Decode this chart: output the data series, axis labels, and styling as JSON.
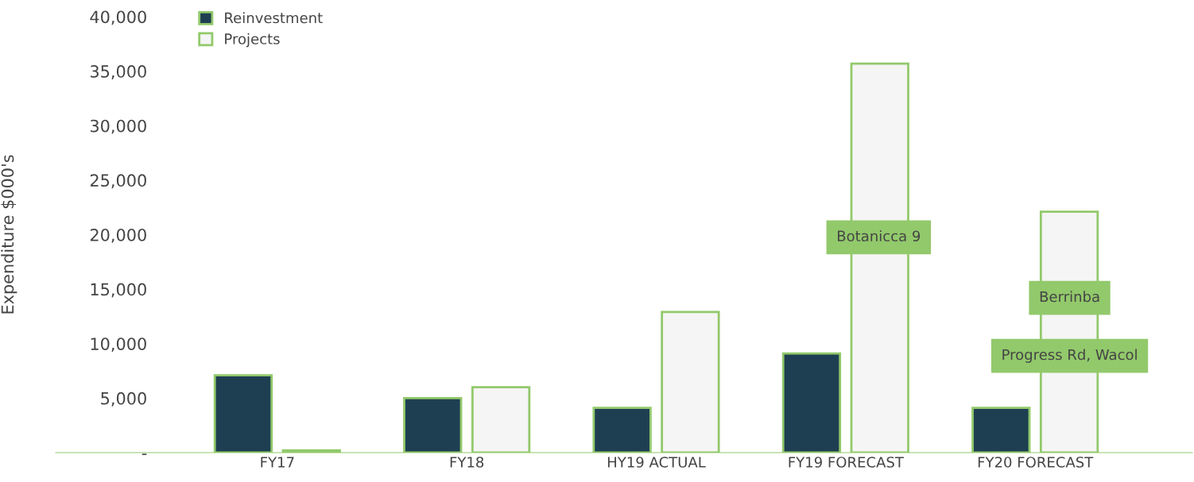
{
  "chart_data": {
    "type": "bar",
    "ylabel": "Expenditure $000's",
    "categories": [
      "FY17",
      "FY18",
      "HY19 ACTUAL",
      "FY19 FORECAST",
      "FY20 FORECAST"
    ],
    "series": [
      {
        "name": "Reinvestment",
        "color": "#1e3f52",
        "values": [
          7100,
          5000,
          4100,
          9100,
          4100
        ]
      },
      {
        "name": "Projects",
        "color": "#f5f5f5",
        "values": [
          200,
          6000,
          12900,
          35700,
          22100
        ]
      }
    ],
    "ylim": [
      0,
      40000
    ],
    "yticks": [
      {
        "value": 0,
        "label": "-"
      },
      {
        "value": 5000,
        "label": "5,000"
      },
      {
        "value": 10000,
        "label": "10,000"
      },
      {
        "value": 15000,
        "label": "15,000"
      },
      {
        "value": 20000,
        "label": "20,000"
      },
      {
        "value": 25000,
        "label": "25,000"
      },
      {
        "value": 30000,
        "label": "30,000"
      },
      {
        "value": 35000,
        "label": "35,000"
      },
      {
        "value": 40000,
        "label": "40,000"
      }
    ],
    "annotations": [
      "Botanicca 9",
      "Berrinba",
      "Progress Rd, Wacol"
    ],
    "grid": false,
    "legend": "top left"
  }
}
